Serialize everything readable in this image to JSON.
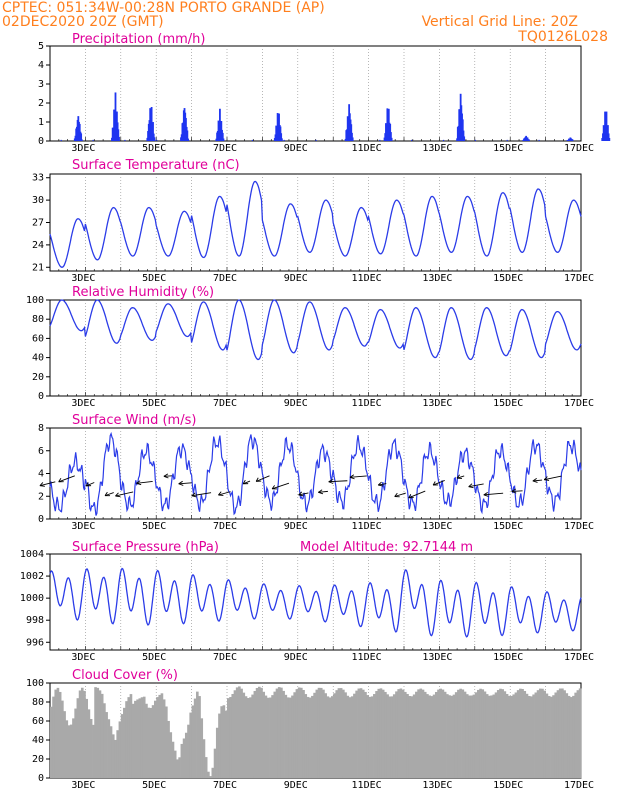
{
  "header": {
    "line1": "CPTEC:  051:34W-00:28N  PORTO GRANDE (AP)",
    "line2": "02DEC2020 20Z (GMT)",
    "grid_note": "Vertical Grid Line: 20Z",
    "code": "TQ0126L028"
  },
  "x_tick_labels": [
    "3DEC",
    "5DEC",
    "7DEC",
    "9DEC",
    "11DEC",
    "13DEC",
    "15DEC",
    "17DEC"
  ],
  "colors": {
    "header": "#ff7f1e",
    "title": "#e0009a",
    "line": "#2b3ce8",
    "bar": "#1f35f0",
    "cloud": "#a9a9a9"
  },
  "chart_data": [
    {
      "type": "bar",
      "title": "Precipitation (mm/h)",
      "ylim": [
        0,
        5
      ],
      "yticks": [
        "0",
        "1",
        "2",
        "3",
        "4",
        "5"
      ],
      "x_unit": "days since 02DEC2020 20Z",
      "bursts": [
        {
          "day": 0.8,
          "peak": 1.5
        },
        {
          "day": 1.85,
          "peak": 2.6
        },
        {
          "day": 2.85,
          "peak": 2.2
        },
        {
          "day": 3.8,
          "peak": 2.1
        },
        {
          "day": 4.8,
          "peak": 1.7
        },
        {
          "day": 6.45,
          "peak": 1.8
        },
        {
          "day": 8.45,
          "peak": 2.1
        },
        {
          "day": 9.55,
          "peak": 2.1
        },
        {
          "day": 11.6,
          "peak": 2.7
        },
        {
          "day": 13.45,
          "peak": 0.3
        },
        {
          "day": 14.7,
          "peak": 0.2
        },
        {
          "day": 15.7,
          "peak": 1.9
        }
      ]
    },
    {
      "type": "line",
      "title": "Surface Temperature (nC)",
      "ylim": [
        20.5,
        33.5
      ],
      "yticks": [
        "21",
        "24",
        "27",
        "30",
        "33"
      ],
      "daily_min": [
        21.0,
        22.0,
        22.5,
        22.5,
        22.3,
        22.5,
        22.5,
        23.0,
        22.5,
        22.8,
        22.5,
        23.0,
        22.5,
        23.0,
        23.0
      ],
      "daily_max": [
        27.5,
        29.0,
        29.0,
        28.5,
        30.5,
        32.5,
        29.5,
        30.0,
        29.0,
        30.0,
        30.5,
        30.5,
        31.0,
        31.5,
        30.0
      ]
    },
    {
      "type": "line",
      "title": "Relative Humidity (%)",
      "ylim": [
        0,
        100
      ],
      "yticks": [
        "0",
        "20",
        "40",
        "60",
        "80",
        "100"
      ],
      "daily_min": [
        68,
        55,
        58,
        62,
        48,
        38,
        45,
        48,
        52,
        50,
        40,
        38,
        42,
        40,
        48
      ],
      "daily_max": [
        100,
        100,
        92,
        96,
        98,
        100,
        100,
        98,
        92,
        90,
        92,
        92,
        92,
        90,
        88
      ]
    },
    {
      "type": "line",
      "title": "Surface Wind (m/s)",
      "ylim": [
        0,
        8
      ],
      "yticks": [
        "0",
        "2",
        "4",
        "6",
        "8"
      ],
      "daily_min": [
        1.0,
        0.8,
        1.2,
        1.2,
        1.3,
        1.0,
        1.5,
        1.3,
        1.5,
        1.3,
        1.3,
        1.5,
        1.2,
        1.3,
        1.5
      ],
      "daily_max": [
        5.0,
        7.0,
        6.0,
        6.2,
        6.8,
        7.0,
        6.5,
        6.0,
        6.5,
        6.5,
        6.0,
        5.8,
        6.0,
        6.5,
        6.5
      ],
      "arrows_note": "wind direction arrows (from ENE)"
    },
    {
      "type": "line",
      "title": "Surface Pressure (hPa)",
      "subtitle": "Model Altitude: 92.7144 m",
      "ylim": [
        995.3,
        1004
      ],
      "yticks": [
        "996",
        "998",
        "1000",
        "1002",
        "1004"
      ],
      "series_desc": "semi-diurnal oscillation, amplitude 2-3 hPa, mean ~999.5"
    },
    {
      "type": "bar",
      "title": "Cloud Cover (%)",
      "ylim": [
        0,
        100
      ],
      "yticks": [
        "0",
        "20",
        "40",
        "60",
        "80",
        "100"
      ],
      "typical_level": 92,
      "dips": [
        {
          "day": 4.5,
          "value": 8
        },
        {
          "day": 3.6,
          "value": 20
        },
        {
          "day": 1.8,
          "value": 38
        }
      ]
    }
  ]
}
